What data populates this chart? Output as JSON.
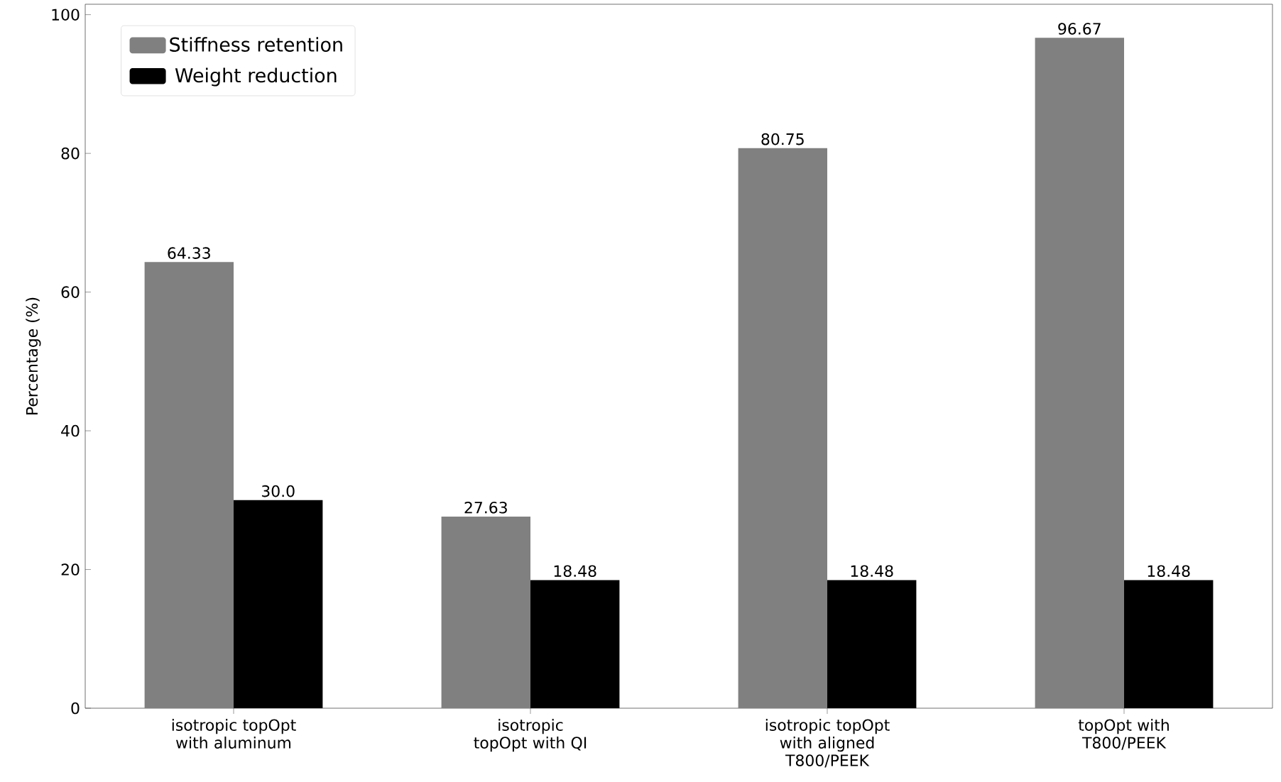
{
  "chart_data": {
    "type": "bar",
    "ylabel": "Percentage (%)",
    "categories": [
      "isotropic topOpt with aluminum",
      "isotropic topOpt with QI",
      "isotropic topOpt with aligned T800/PEEK",
      "topOpt with T800/PEEK"
    ],
    "series": [
      {
        "name": "Stiffness retention",
        "color": "#808080",
        "values": [
          64.33,
          27.63,
          80.75,
          96.67
        ],
        "value_labels": [
          "64.33",
          "27.63",
          "80.75",
          "96.67"
        ]
      },
      {
        "name": "Weight reduction",
        "color": "#000000",
        "values": [
          30.0,
          18.48,
          18.48,
          18.48
        ],
        "value_labels": [
          "30.0",
          "18.48",
          "18.48",
          "18.48"
        ]
      }
    ],
    "ylim": [
      0,
      101.5
    ],
    "yticks": [
      0,
      20,
      40,
      60,
      80,
      100
    ],
    "grid": false,
    "legend": "top left"
  }
}
